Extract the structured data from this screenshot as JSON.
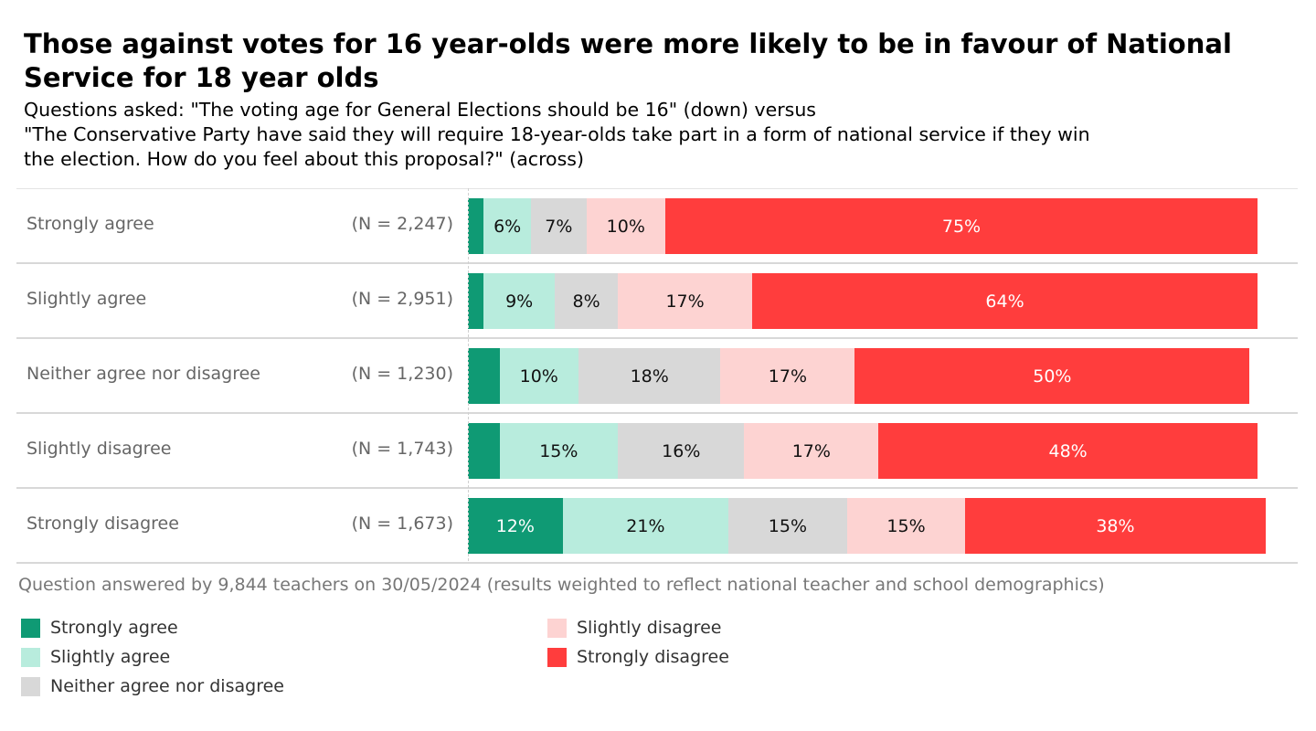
{
  "title": "Those against votes for 16 year-olds were more likely to be in favour of National Service for 18 year olds",
  "subtitle_lines": [
    "Questions asked: \"The voting age for General Elections should be 16\" (down) versus",
    "\"The Conservative Party have said they will require 18-year-olds take part in a form of national service if they win",
    "the election. How do you feel about this proposal?\" (across)"
  ],
  "footnote": "Question answered by 9,844 teachers on 30/05/2024 (results weighted to reflect national teacher and school demographics)",
  "chart_data": {
    "type": "bar",
    "orientation": "horizontal",
    "stacked": true,
    "percent": true,
    "title": "Those against votes for 16 year-olds were more likely to be in favour of National Service for 18 year olds",
    "xlabel": "",
    "ylabel": "",
    "xlim": [
      0,
      100
    ],
    "grid": false,
    "legend_position": "bottom",
    "categories": [
      "Strongly agree",
      "Slightly agree",
      "Neither agree nor disagree",
      "Slightly disagree",
      "Strongly disagree"
    ],
    "category_n": [
      "(N = 2,247)",
      "(N = 2,951)",
      "(N = 1,230)",
      "(N = 1,743)",
      "(N = 1,673)"
    ],
    "series": [
      {
        "name": "Strongly agree",
        "color": "#0f9a74",
        "label_color": "#ffffff",
        "values": [
          2,
          2,
          4,
          4,
          12
        ],
        "labels": [
          "",
          "",
          "",
          "",
          "12%"
        ]
      },
      {
        "name": "Slightly agree",
        "color": "#b8ecdd",
        "label_color": "#111111",
        "values": [
          6,
          9,
          10,
          15,
          21
        ],
        "labels": [
          "6%",
          "9%",
          "10%",
          "15%",
          "21%"
        ]
      },
      {
        "name": "Neither agree nor disagree",
        "color": "#d8d8d8",
        "label_color": "#111111",
        "values": [
          7,
          8,
          18,
          16,
          15
        ],
        "labels": [
          "7%",
          "8%",
          "18%",
          "16%",
          "15%"
        ]
      },
      {
        "name": "Slightly disagree",
        "color": "#fdd3d2",
        "label_color": "#111111",
        "values": [
          10,
          17,
          17,
          17,
          15
        ],
        "labels": [
          "10%",
          "17%",
          "17%",
          "17%",
          "15%"
        ]
      },
      {
        "name": "Strongly disagree",
        "color": "#ff3d3d",
        "label_color": "#ffffff",
        "values": [
          75,
          64,
          50,
          48,
          38
        ],
        "labels": [
          "75%",
          "64%",
          "50%",
          "48%",
          "38%"
        ]
      }
    ]
  }
}
